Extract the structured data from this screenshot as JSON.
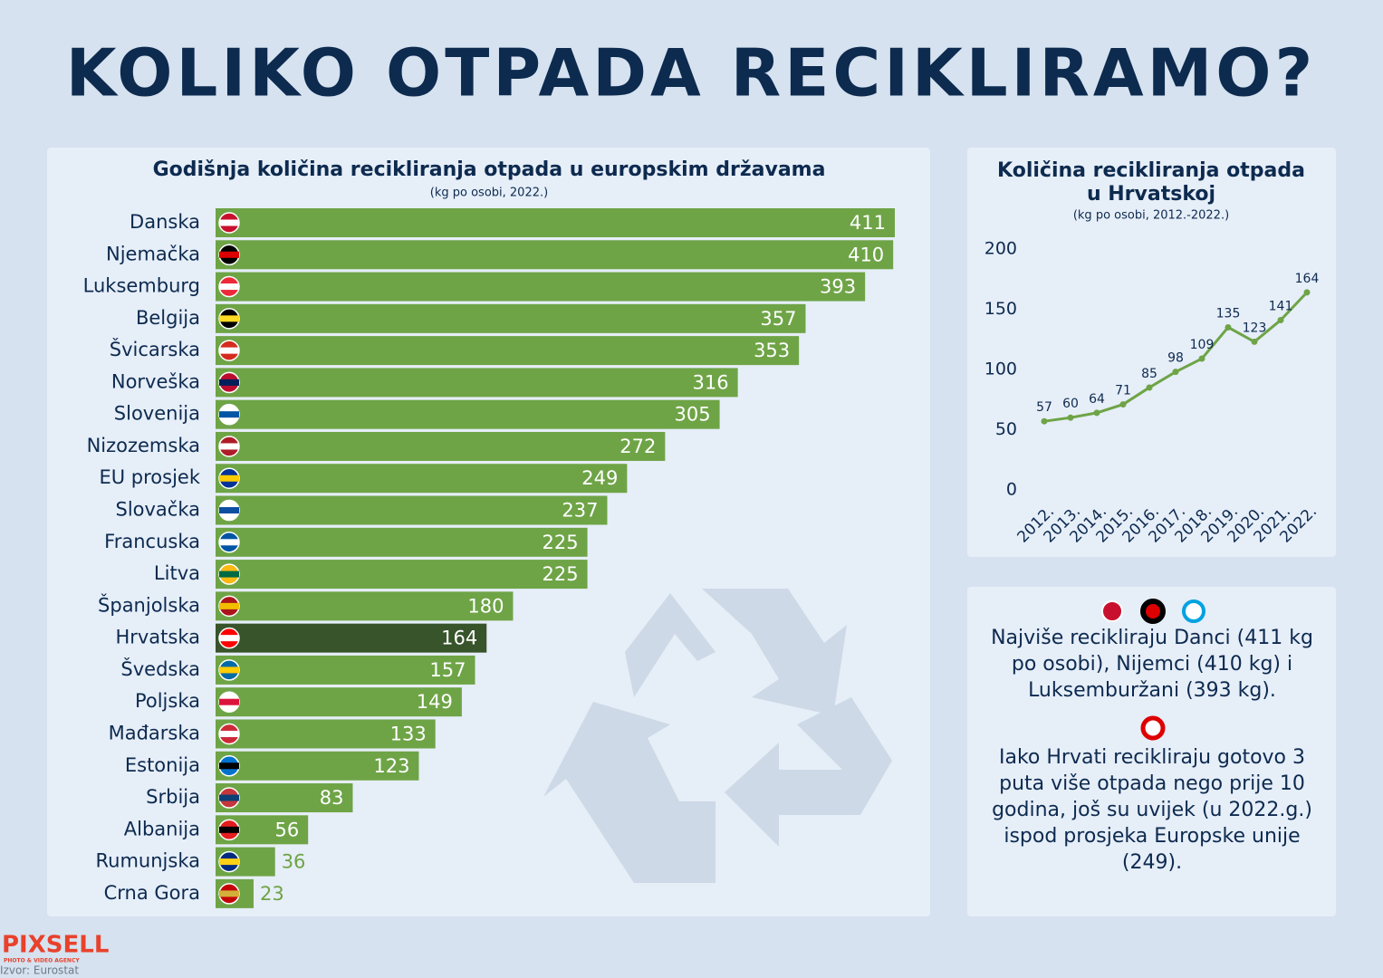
{
  "title": "KOLIKO OTPADA RECIKLIRAMO?",
  "chart_data": [
    {
      "type": "hbar",
      "title": "Godišnja količina recikliranja otpada u europskim državama",
      "subtitle": "(kg po osobi, 2022.)",
      "categories": [
        "Danska",
        "Njemačka",
        "Luksemburg",
        "Belgija",
        "Švicarska",
        "Norveška",
        "Slovenija",
        "Nizozemska",
        "EU prosjek",
        "Slovačka",
        "Francuska",
        "Litva",
        "Španjolska",
        "Hrvatska",
        "Švedska",
        "Poljska",
        "Mađarska",
        "Estonija",
        "Srbija",
        "Albanija",
        "Rumunjska",
        "Crna Gora"
      ],
      "values": [
        411,
        410,
        393,
        357,
        353,
        316,
        305,
        272,
        249,
        237,
        225,
        225,
        180,
        164,
        157,
        149,
        133,
        123,
        83,
        56,
        36,
        23
      ],
      "colors": [
        "#6ea446",
        "#6ea446",
        "#6ea446",
        "#6ea446",
        "#6ea446",
        "#6ea446",
        "#6ea446",
        "#6ea446",
        "#6ea446",
        "#6ea446",
        "#6ea446",
        "#6ea446",
        "#6ea446",
        "#37542a",
        "#6ea446",
        "#6ea446",
        "#6ea446",
        "#6ea446",
        "#6ea446",
        "#6ea446",
        "#6ea446",
        "#6ea446"
      ]
    },
    {
      "type": "line",
      "title": [
        "Količina recikliranja otpada",
        "u Hrvatskoj"
      ],
      "subtitle": "(kg po osobi, 2012.-2022.)",
      "categories": [
        "2012.",
        "2013.",
        "2014.",
        "2015.",
        "2016.",
        "2017.",
        "2018.",
        "2019.",
        "2020.",
        "2021.",
        "2022."
      ],
      "values": [
        57,
        60,
        64,
        71,
        85,
        98,
        109,
        135,
        123,
        141,
        164
      ],
      "color": "#6ea446",
      "ylim": [
        0,
        200
      ],
      "yticks": [
        0,
        50,
        100,
        150,
        200
      ]
    }
  ],
  "notes": [
    "Najviše recikliraju Danci (411 kg po osobi), Nijemci (410 kg) i Luksemburžani (393 kg).",
    "Iako Hrvati recikliraju gotovo 3 puta više otpada nego prije 10 godina, još su uvijek (u 2022.g.) ispod prosjeka Europske unije (249)."
  ],
  "logo": {
    "name": "PIXSELL",
    "tagline": "PHOTO & VIDEO AGENCY"
  },
  "source": "Izvor: Eurostat"
}
